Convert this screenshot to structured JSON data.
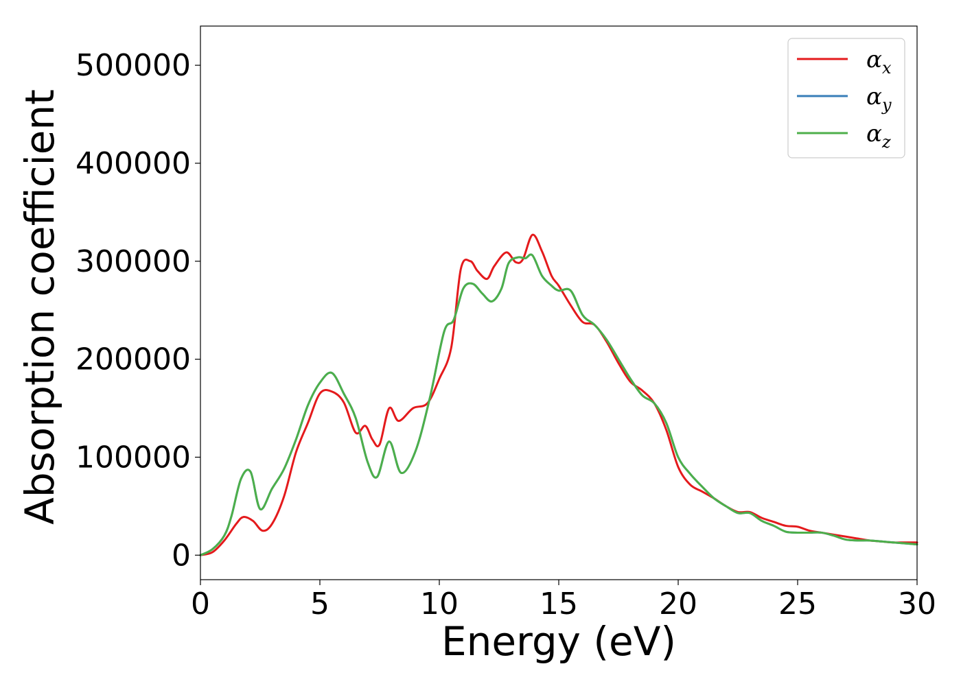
{
  "chart_data": {
    "type": "line",
    "xlabel": "Energy (eV)",
    "ylabel": "Absorption coefficient",
    "xlim": [
      0,
      30
    ],
    "ylim": [
      -25000,
      540000
    ],
    "xticks": [
      0,
      5,
      10,
      15,
      20,
      25,
      30
    ],
    "yticks": [
      0,
      100000,
      200000,
      300000,
      400000,
      500000
    ],
    "grid": false,
    "legend_position": "top-right",
    "series": [
      {
        "name": "α_x",
        "legend_symbol": "α",
        "legend_sub": "x",
        "color": "#e41a1c",
        "x": [
          0,
          0.5,
          1.0,
          1.5,
          1.8,
          2.2,
          2.6,
          3.0,
          3.5,
          4.0,
          4.5,
          5.0,
          5.5,
          6.0,
          6.5,
          6.9,
          7.2,
          7.5,
          7.9,
          8.3,
          8.9,
          9.5,
          10.0,
          10.5,
          10.9,
          11.3,
          11.6,
          12.0,
          12.3,
          12.8,
          13.2,
          13.5,
          13.9,
          14.3,
          14.7,
          15.0,
          15.5,
          16.0,
          16.5,
          17.0,
          17.5,
          18.0,
          18.5,
          19.0,
          19.5,
          20.0,
          20.5,
          21.0,
          21.5,
          22.0,
          22.5,
          23.0,
          23.5,
          24.0,
          24.5,
          25.0,
          25.5,
          26.0,
          26.5,
          27.0,
          27.5,
          28.0,
          28.5,
          29.0,
          29.5,
          30.0
        ],
        "y": [
          0,
          3000,
          15000,
          32000,
          39000,
          35000,
          25000,
          32000,
          60000,
          105000,
          135000,
          165000,
          167000,
          156000,
          125000,
          132000,
          118000,
          113000,
          150000,
          137000,
          150000,
          155000,
          180000,
          212000,
          292000,
          300000,
          290000,
          282000,
          295000,
          309000,
          299000,
          302000,
          327000,
          310000,
          285000,
          275000,
          255000,
          238000,
          235000,
          218000,
          196000,
          177000,
          168000,
          155000,
          128000,
          90000,
          72000,
          65000,
          58000,
          50000,
          44000,
          44000,
          38000,
          34000,
          30000,
          29000,
          25000,
          23000,
          21000,
          19000,
          17000,
          15000,
          14000,
          13000,
          13000,
          13000
        ]
      },
      {
        "name": "α_y",
        "legend_symbol": "α",
        "legend_sub": "y",
        "color": "#377eb8",
        "x": [
          0,
          0.5,
          1.0,
          1.3,
          1.7,
          2.1,
          2.5,
          3.0,
          3.5,
          4.0,
          4.5,
          5.0,
          5.5,
          6.0,
          6.5,
          7.0,
          7.4,
          7.9,
          8.4,
          9.0,
          9.6,
          10.2,
          10.6,
          11.0,
          11.4,
          11.8,
          12.2,
          12.6,
          12.9,
          13.3,
          13.6,
          13.9,
          14.3,
          14.7,
          15.0,
          15.5,
          16.0,
          16.5,
          17.0,
          17.5,
          18.0,
          18.5,
          19.0,
          19.5,
          20.0,
          20.5,
          21.0,
          21.5,
          22.0,
          22.5,
          23.0,
          23.5,
          24.0,
          24.5,
          25.0,
          25.5,
          26.0,
          26.5,
          27.0,
          27.5,
          28.0,
          28.5,
          29.0,
          29.5,
          30.0
        ],
        "y": [
          0,
          6000,
          20000,
          40000,
          78000,
          85000,
          47000,
          68000,
          88000,
          118000,
          153000,
          176000,
          186000,
          165000,
          140000,
          95000,
          80000,
          116000,
          84000,
          106000,
          160000,
          228000,
          240000,
          272000,
          277000,
          267000,
          259000,
          272000,
          298000,
          304000,
          303000,
          306000,
          285000,
          275000,
          270000,
          270000,
          245000,
          235000,
          220000,
          200000,
          180000,
          163000,
          155000,
          135000,
          100000,
          83000,
          70000,
          58000,
          50000,
          43000,
          43000,
          35000,
          30000,
          24000,
          23000,
          23000,
          23000,
          20000,
          16000,
          15000,
          15000,
          14000,
          13000,
          12000,
          11000
        ]
      },
      {
        "name": "α_z",
        "legend_symbol": "α",
        "legend_sub": "z",
        "color": "#4daf4a",
        "x": [
          0,
          0.5,
          1.0,
          1.3,
          1.7,
          2.1,
          2.5,
          3.0,
          3.5,
          4.0,
          4.5,
          5.0,
          5.5,
          6.0,
          6.5,
          7.0,
          7.4,
          7.9,
          8.4,
          9.0,
          9.6,
          10.2,
          10.6,
          11.0,
          11.4,
          11.8,
          12.2,
          12.6,
          12.9,
          13.3,
          13.6,
          13.9,
          14.3,
          14.7,
          15.0,
          15.5,
          16.0,
          16.5,
          17.0,
          17.5,
          18.0,
          18.5,
          19.0,
          19.5,
          20.0,
          20.5,
          21.0,
          21.5,
          22.0,
          22.5,
          23.0,
          23.5,
          24.0,
          24.5,
          25.0,
          25.5,
          26.0,
          26.5,
          27.0,
          27.5,
          28.0,
          28.5,
          29.0,
          29.5,
          30.0
        ],
        "y": [
          0,
          6000,
          20000,
          40000,
          78000,
          85000,
          47000,
          68000,
          88000,
          118000,
          153000,
          176000,
          186000,
          165000,
          140000,
          95000,
          80000,
          116000,
          84000,
          106000,
          160000,
          228000,
          240000,
          272000,
          277000,
          267000,
          259000,
          272000,
          298000,
          304000,
          303000,
          306000,
          285000,
          275000,
          270000,
          270000,
          245000,
          235000,
          220000,
          200000,
          180000,
          163000,
          155000,
          135000,
          100000,
          83000,
          70000,
          58000,
          50000,
          43000,
          43000,
          35000,
          30000,
          24000,
          23000,
          23000,
          23000,
          20000,
          16000,
          15000,
          15000,
          14000,
          13000,
          12000,
          11000
        ]
      }
    ]
  }
}
